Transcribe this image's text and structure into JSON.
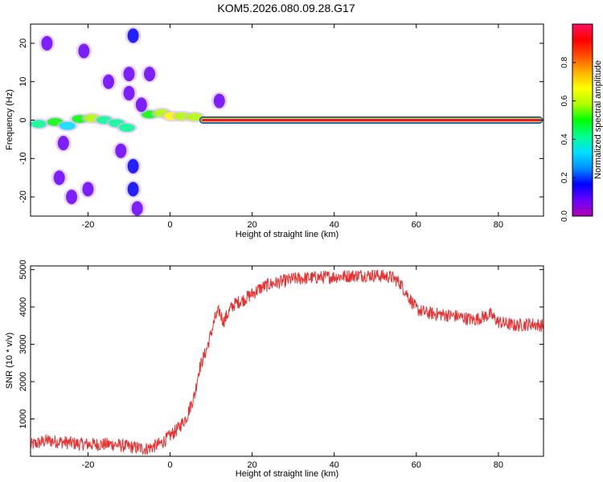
{
  "title": "KOM5.2026.080.09.28.G17",
  "colors": {
    "snr_line": "#e83030",
    "track_fill": "#e8155a",
    "track_outline": "#1a9a7a",
    "axis": "#000000",
    "colorbar": [
      "#b000b0",
      "#6a00ff",
      "#0000ff",
      "#0090ff",
      "#00e0ff",
      "#00ff90",
      "#00ff00",
      "#b0ff00",
      "#ffff00",
      "#ffb000",
      "#ff5000",
      "#ff0000",
      "#ff1060"
    ]
  },
  "chart_data": [
    {
      "type": "heatmap",
      "title": "KOM5.2026.080.09.28.G17",
      "xlabel": "Height of straight line (km)",
      "ylabel": "Frequency (Hz)",
      "xlim": [
        -34,
        91
      ],
      "ylim": [
        -25,
        25
      ],
      "xticks": [
        -20,
        0,
        20,
        40,
        60,
        80
      ],
      "yticks": [
        -20,
        -10,
        0,
        10,
        20
      ],
      "colorbar": {
        "label": "Normalized spectral amplitude",
        "range": [
          0,
          1
        ],
        "ticks": [
          "0.0",
          "0.2",
          "0.4",
          "0.6",
          "0.8"
        ]
      },
      "track": {
        "description": "strong carrier line at 0 Hz",
        "x_start": 8,
        "x_end": 90,
        "frequency": 0,
        "amplitude": 1.0
      },
      "blobs": [
        {
          "x": -32,
          "f": -1,
          "a": 0.45
        },
        {
          "x": -28,
          "f": -0.5,
          "a": 0.5
        },
        {
          "x": -25,
          "f": -1.5,
          "a": 0.35
        },
        {
          "x": -22,
          "f": 0.3,
          "a": 0.5
        },
        {
          "x": -19,
          "f": 0.5,
          "a": 0.55
        },
        {
          "x": -16,
          "f": 0,
          "a": 0.45
        },
        {
          "x": -13,
          "f": -0.8,
          "a": 0.45
        },
        {
          "x": -10.5,
          "f": -2,
          "a": 0.4
        },
        {
          "x": -5,
          "f": 1.5,
          "a": 0.5
        },
        {
          "x": -2,
          "f": 1.8,
          "a": 0.55
        },
        {
          "x": 0.5,
          "f": 1.0,
          "a": 0.7
        },
        {
          "x": 3,
          "f": 1.0,
          "a": 0.6
        },
        {
          "x": 6,
          "f": 0.8,
          "a": 0.55
        },
        {
          "x": -30,
          "f": 20,
          "a": 0.1
        },
        {
          "x": -21,
          "f": 18,
          "a": 0.1
        },
        {
          "x": -9,
          "f": 22,
          "a": 0.15
        },
        {
          "x": -27,
          "f": -15,
          "a": 0.12
        },
        {
          "x": -24,
          "f": -20,
          "a": 0.12
        },
        {
          "x": -9,
          "f": -18,
          "a": 0.15
        },
        {
          "x": -9,
          "f": -12,
          "a": 0.15
        },
        {
          "x": -10,
          "f": 12,
          "a": 0.12
        },
        {
          "x": -10,
          "f": 7,
          "a": 0.12
        },
        {
          "x": -15,
          "f": 10,
          "a": 0.1
        },
        {
          "x": -12,
          "f": -8,
          "a": 0.12
        },
        {
          "x": -8,
          "f": -23,
          "a": 0.1
        },
        {
          "x": -26,
          "f": -6,
          "a": 0.12
        },
        {
          "x": -7,
          "f": 4,
          "a": 0.12
        },
        {
          "x": 12,
          "f": 5,
          "a": 0.08
        },
        {
          "x": -20,
          "f": -18,
          "a": 0.1
        },
        {
          "x": -5,
          "f": 12,
          "a": 0.08
        }
      ]
    },
    {
      "type": "line",
      "xlabel": "Height of straight line (km)",
      "ylabel": "SNR (10 * v/v)",
      "xlim": [
        -34,
        91
      ],
      "ylim": [
        0,
        5100
      ],
      "xticks": [
        -20,
        0,
        20,
        40,
        60,
        80
      ],
      "yticks": [
        1000,
        2000,
        3000,
        4000,
        5000
      ],
      "series": [
        {
          "name": "SNR",
          "x": [
            -34,
            -30,
            -26,
            -22,
            -18,
            -14,
            -10,
            -6,
            -4,
            -2,
            0,
            2,
            4,
            6,
            7,
            8,
            9,
            10,
            11,
            12,
            13,
            14,
            15,
            16,
            18,
            20,
            22,
            24,
            26,
            28,
            30,
            34,
            38,
            42,
            46,
            50,
            54,
            56,
            58,
            60,
            62,
            66,
            70,
            74,
            78,
            80,
            84,
            88,
            91
          ],
          "values": [
            300,
            420,
            380,
            330,
            320,
            320,
            260,
            200,
            260,
            360,
            550,
            750,
            1050,
            1650,
            2300,
            2600,
            2900,
            3300,
            3700,
            3900,
            3600,
            3800,
            4000,
            4100,
            4200,
            4350,
            4500,
            4600,
            4650,
            4700,
            4750,
            4780,
            4800,
            4820,
            4850,
            4850,
            4800,
            4650,
            4300,
            3950,
            3850,
            3800,
            3750,
            3650,
            3800,
            3600,
            3500,
            3550,
            3500
          ],
          "noise": 180
        }
      ]
    }
  ]
}
